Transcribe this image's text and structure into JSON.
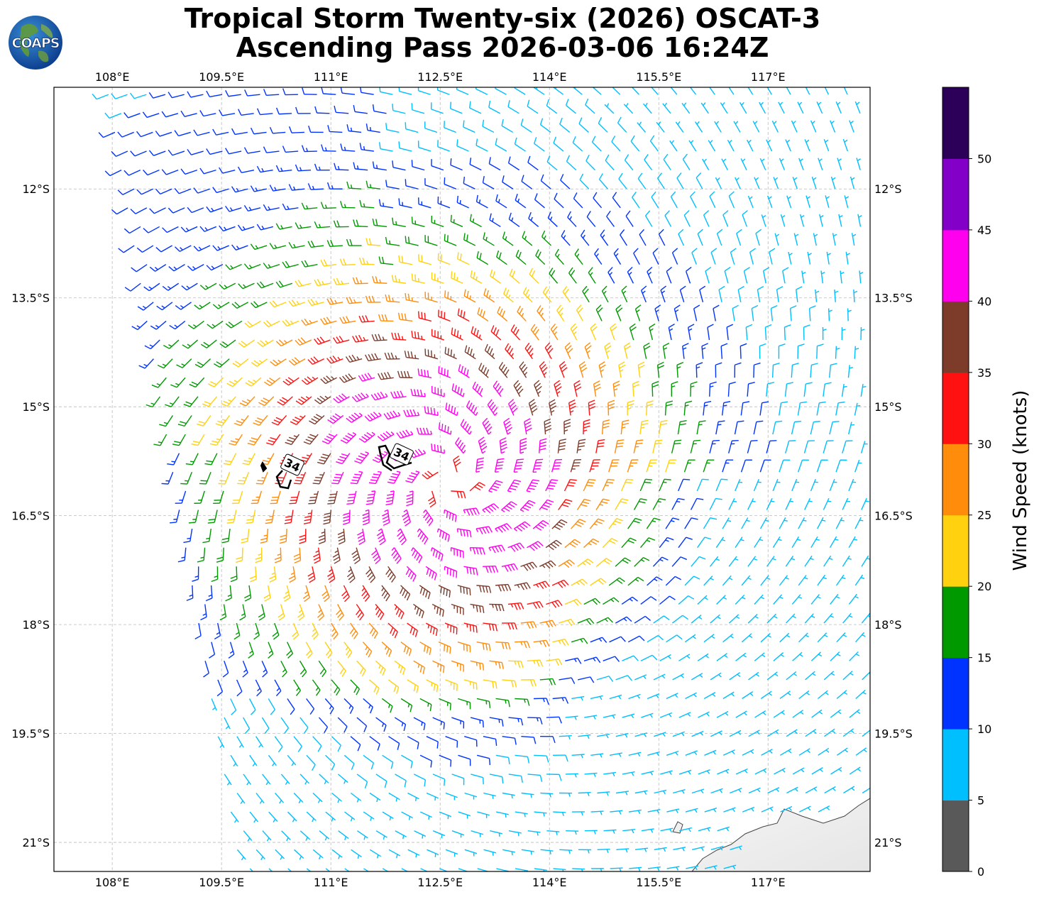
{
  "title": {
    "line1": "Tropical Storm Twenty-six (2026) OSCAT-3",
    "line2": "Ascending Pass 2026-03-06 16:24Z"
  },
  "logo": {
    "text": "COAPS"
  },
  "map": {
    "lon_range": [
      107.2,
      118.4
    ],
    "lat_range": [
      -21.4,
      -10.6
    ],
    "lon_ticks": [
      "108°E",
      "109.5°E",
      "111°E",
      "112.5°E",
      "114°E",
      "115.5°E",
      "117°E"
    ],
    "lat_ticks": [
      "12°S",
      "13.5°S",
      "15°S",
      "16.5°S",
      "18°S",
      "19.5°S",
      "21°S"
    ],
    "storm_center": {
      "lon": 112.6,
      "lat": -16.0
    },
    "contour_labels": [
      "34",
      "34"
    ]
  },
  "colorbar": {
    "label": "Wind Speed (knots)",
    "ticks": [
      "0",
      "5",
      "10",
      "15",
      "20",
      "25",
      "30",
      "35",
      "40",
      "45",
      "50"
    ],
    "colors": [
      "#595959",
      "#00bfff",
      "#0033ff",
      "#009900",
      "#ffd10f",
      "#ff8c0a",
      "#ff1111",
      "#7d3b2a",
      "#ff00ee",
      "#8200c8",
      "#2c0059"
    ]
  },
  "chart_data": {
    "type": "wind_barbs",
    "units": "knots",
    "bins": [
      {
        "range": [
          0,
          5
        ],
        "color": "#595959"
      },
      {
        "range": [
          5,
          10
        ],
        "color": "#00bfff"
      },
      {
        "range": [
          10,
          15
        ],
        "color": "#0033ff"
      },
      {
        "range": [
          15,
          20
        ],
        "color": "#009900"
      },
      {
        "range": [
          20,
          25
        ],
        "color": "#ffd10f"
      },
      {
        "range": [
          25,
          30
        ],
        "color": "#ff8c0a"
      },
      {
        "range": [
          30,
          35
        ],
        "color": "#ff1111"
      },
      {
        "range": [
          35,
          40
        ],
        "color": "#7d3b2a"
      },
      {
        "range": [
          40,
          45
        ],
        "color": "#ff00ee"
      },
      {
        "range": [
          45,
          50
        ],
        "color": "#8200c8"
      },
      {
        "range": [
          50,
          55
        ],
        "color": "#2c0059"
      }
    ]
  }
}
